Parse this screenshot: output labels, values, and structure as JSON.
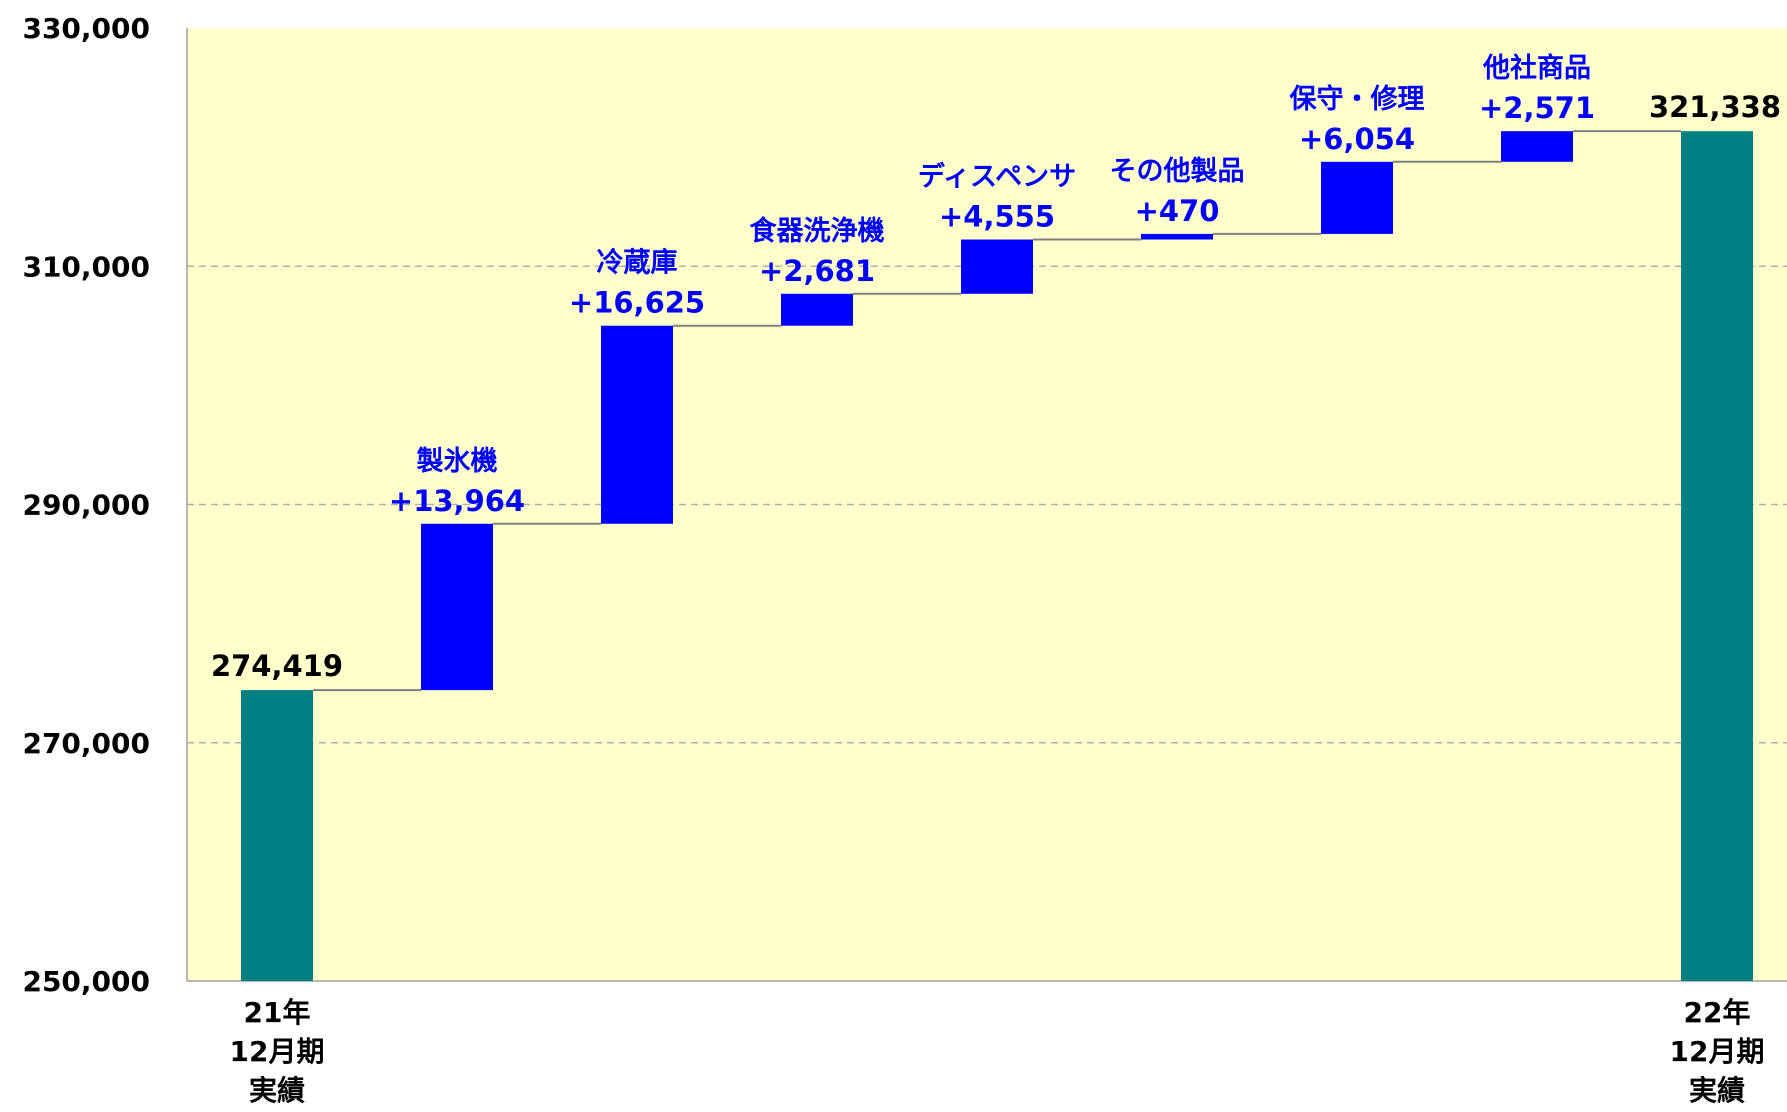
{
  "chart_data": {
    "type": "bar",
    "subtype": "waterfall",
    "ylim": [
      250000,
      330000
    ],
    "yticks": [
      250000,
      270000,
      290000,
      310000,
      330000
    ],
    "ytick_labels": [
      "250,000",
      "270,000",
      "290,000",
      "310,000",
      "330,000"
    ],
    "grid": true,
    "categories": [
      {
        "kind": "total",
        "label_lines": [
          "21年",
          "12月期",
          "実績"
        ],
        "value": 274419,
        "value_label": "274,419"
      },
      {
        "kind": "delta",
        "name": "製氷機",
        "value": 13964,
        "value_label": "+13,964"
      },
      {
        "kind": "delta",
        "name": "冷蔵庫",
        "value": 16625,
        "value_label": "+16,625"
      },
      {
        "kind": "delta",
        "name": "食器洗浄機",
        "value": 2681,
        "value_label": "+2,681"
      },
      {
        "kind": "delta",
        "name": "ディスペンサ",
        "value": 4555,
        "value_label": "+4,555"
      },
      {
        "kind": "delta",
        "name": "その他製品",
        "value": 470,
        "value_label": "+470"
      },
      {
        "kind": "delta",
        "name": "保守・修理",
        "value": 6054,
        "value_label": "+6,054"
      },
      {
        "kind": "delta",
        "name": "他社商品",
        "value": 2571,
        "value_label": "+2,571"
      },
      {
        "kind": "total",
        "label_lines": [
          "22年",
          "12月期",
          "実績"
        ],
        "value": 321338,
        "value_label": "321,338"
      }
    ],
    "colors": {
      "plot_bg": "#FFFFCC",
      "total_bar": "#008080",
      "delta_bar": "#0000FF",
      "delta_text": "#0000FF",
      "connector": "#808080",
      "grid": "#B0B0B0",
      "axis_text": "#000000"
    }
  }
}
